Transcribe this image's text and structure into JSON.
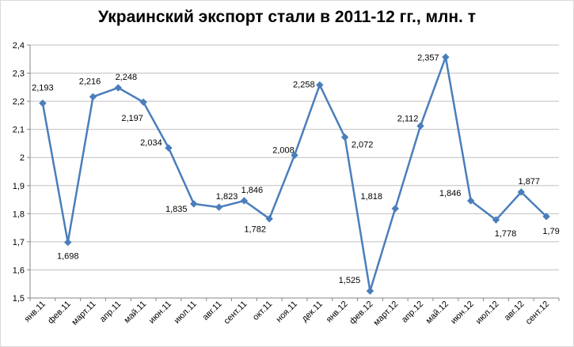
{
  "chart_data": {
    "type": "line",
    "title": "Украинский экспорт стали в 2011-12 гг., млн. т",
    "xlabel": "",
    "ylabel": "",
    "categories": [
      "янв.11",
      "фев.11",
      "март.11",
      "апр.11",
      "май.11",
      "июн.11",
      "июл.11",
      "авг.11",
      "сент.11",
      "окт.11",
      "ноя.11",
      "дек.11",
      "янв.12",
      "фев.12",
      "март.12",
      "апр.12",
      "май.12",
      "июн.12",
      "июл.12",
      "авг.12",
      "сент.12"
    ],
    "values": [
      2.193,
      1.698,
      2.216,
      2.248,
      2.197,
      2.034,
      1.835,
      1.823,
      1.846,
      1.782,
      2.008,
      2.258,
      2.072,
      1.525,
      1.818,
      2.112,
      2.357,
      1.846,
      1.778,
      1.877,
      1.79
    ],
    "value_labels": [
      "2,193",
      "1,698",
      "2,216",
      "2,248",
      "2,197",
      "2,034",
      "1,835",
      "1,823",
      "1,846",
      "1,782",
      "2,008",
      "2,258",
      "2,072",
      "1,525",
      "1,818",
      "2,112",
      "2,357",
      "1,846",
      "1,778",
      "1,877",
      "1,79"
    ],
    "ylim": [
      1.5,
      2.4
    ],
    "yticks": [
      1.5,
      1.6,
      1.7,
      1.8,
      1.9,
      2.0,
      2.1,
      2.2,
      2.3,
      2.4
    ],
    "ytick_labels": [
      "1,5",
      "1,6",
      "1,7",
      "1,8",
      "1,9",
      "2",
      "2,1",
      "2,2",
      "2,3",
      "2,4"
    ],
    "grid": true,
    "legend": "none",
    "line_color": "#4a7ebb",
    "grid_color": "#c0c0c0"
  }
}
